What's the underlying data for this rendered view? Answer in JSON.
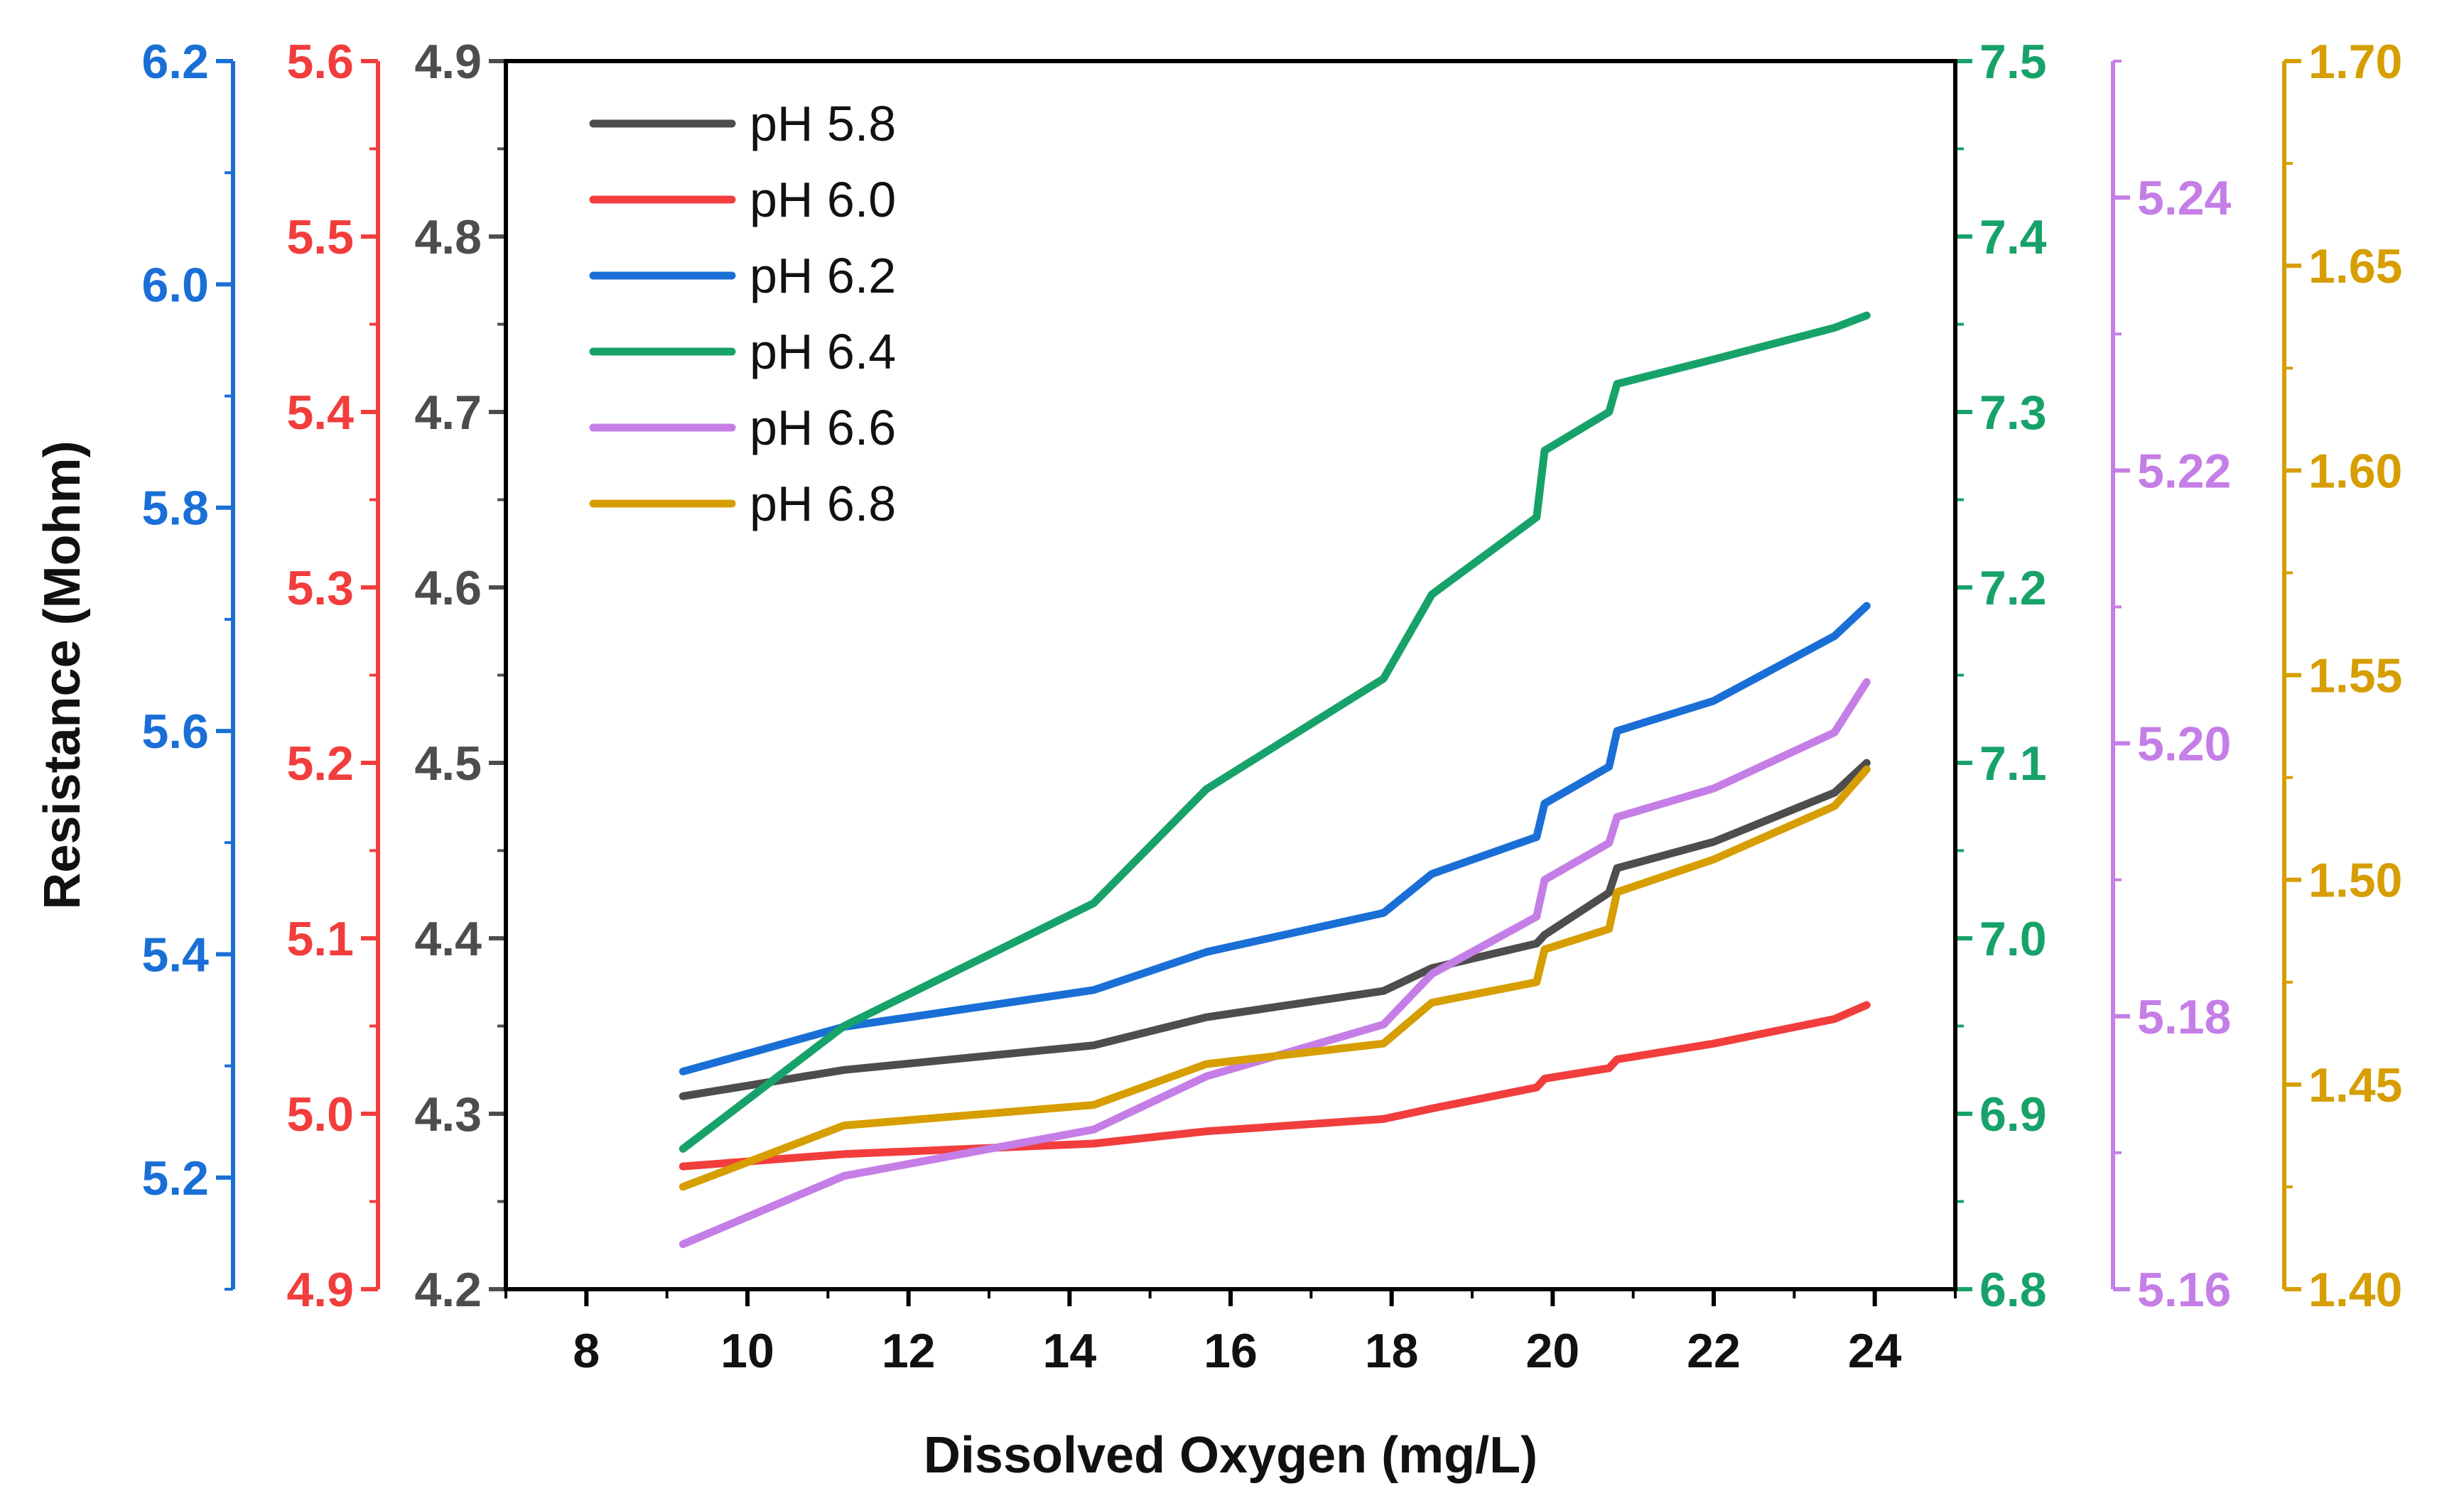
{
  "chart_data": {
    "type": "line",
    "title": "",
    "xlabel": "Dissolved Oxygen (mg/L)",
    "ylabel": "Resistance (Mohm)",
    "xlim": [
      7,
      25
    ],
    "xticks": [
      8,
      10,
      12,
      14,
      16,
      18,
      20,
      22,
      24
    ],
    "x": [
      9.2,
      11.2,
      14.3,
      15.7,
      17.9,
      18.5,
      19.8,
      19.9,
      20.7,
      20.8,
      22.0,
      23.5,
      23.9
    ],
    "legend_position": "top-left",
    "y_axes": [
      {
        "id": "axis-ph-6-2",
        "label": "pH 6.2",
        "color": "#1a6fd6",
        "range": [
          5.1,
          6.2
        ],
        "ticks": [
          "5.2",
          "5.4",
          "5.6",
          "5.8",
          "6.0",
          "6.2"
        ]
      },
      {
        "id": "axis-ph-6-0",
        "label": "pH 6.0",
        "color": "#f23d3d",
        "range": [
          4.9,
          5.6
        ],
        "ticks": [
          "4.9",
          "5.0",
          "5.1",
          "5.2",
          "5.3",
          "5.4",
          "5.5",
          "5.6"
        ]
      },
      {
        "id": "axis-ph-5-8",
        "label": "pH 5.8",
        "color": "#4d4d4d",
        "range": [
          4.2,
          4.9
        ],
        "ticks": [
          "4.2",
          "4.3",
          "4.4",
          "4.5",
          "4.6",
          "4.7",
          "4.8",
          "4.9"
        ]
      },
      {
        "id": "axis-ph-6-4",
        "label": "pH 6.4",
        "color": "#17a26a",
        "range": [
          6.8,
          7.5
        ],
        "ticks": [
          "6.8",
          "6.9",
          "7.0",
          "7.1",
          "7.2",
          "7.3",
          "7.4",
          "7.5"
        ]
      },
      {
        "id": "axis-ph-6-6",
        "label": "pH 6.6",
        "color": "#c57ee6",
        "range": [
          5.16,
          5.25
        ],
        "ticks": [
          "5.16",
          "5.18",
          "5.20",
          "5.22",
          "5.24"
        ]
      },
      {
        "id": "axis-ph-6-8",
        "label": "pH 6.8",
        "color": "#d69e00",
        "range": [
          1.4,
          1.7
        ],
        "ticks": [
          "1.40",
          "1.45",
          "1.50",
          "1.55",
          "1.60",
          "1.65",
          "1.70"
        ]
      }
    ],
    "series": [
      {
        "name": "pH 5.8",
        "color": "#4d4d4d",
        "axis": 2,
        "values": [
          4.31,
          4.325,
          4.339,
          4.355,
          4.37,
          4.383,
          4.397,
          4.402,
          4.426,
          4.44,
          4.455,
          4.483,
          4.5
        ]
      },
      {
        "name": "pH 6.0",
        "color": "#f23d3d",
        "axis": 1,
        "values": [
          4.97,
          4.977,
          4.983,
          4.99,
          4.997,
          5.003,
          5.015,
          5.02,
          5.026,
          5.031,
          5.04,
          5.054,
          5.062
        ]
      },
      {
        "name": "pH 6.2",
        "color": "#1a6fd6",
        "axis": 0,
        "values": [
          5.295,
          5.335,
          5.368,
          5.402,
          5.437,
          5.472,
          5.505,
          5.535,
          5.568,
          5.6,
          5.627,
          5.685,
          5.712
        ]
      },
      {
        "name": "pH 6.4",
        "color": "#17a26a",
        "axis": 3,
        "values": [
          6.88,
          6.95,
          7.02,
          7.085,
          7.148,
          7.196,
          7.24,
          7.278,
          7.3,
          7.316,
          7.33,
          7.348,
          7.355
        ]
      },
      {
        "name": "pH 6.6",
        "color": "#c57ee6",
        "axis": 4,
        "values": [
          5.1633,
          5.1683,
          5.1717,
          5.1756,
          5.1794,
          5.1831,
          5.1873,
          5.19,
          5.1927,
          5.1946,
          5.1967,
          5.2008,
          5.2045
        ]
      },
      {
        "name": "pH 6.8",
        "color": "#d69e00",
        "axis": 5,
        "values": [
          1.425,
          1.44,
          1.445,
          1.455,
          1.46,
          1.47,
          1.475,
          1.483,
          1.488,
          1.497,
          1.505,
          1.518,
          1.527
        ]
      }
    ]
  }
}
